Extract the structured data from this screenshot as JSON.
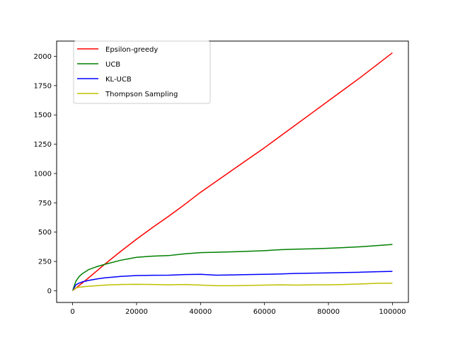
{
  "chart_data": {
    "type": "line",
    "title": "",
    "xlabel": "",
    "ylabel": "",
    "xlim": [
      -5000,
      105000
    ],
    "ylim": [
      -100,
      2130
    ],
    "x_ticks": [
      0,
      20000,
      40000,
      60000,
      80000,
      100000
    ],
    "y_ticks": [
      0,
      250,
      500,
      750,
      1000,
      1250,
      1500,
      1750,
      2000
    ],
    "legend_position": "upper-left",
    "grid": false,
    "series": [
      {
        "name": "Epsilon-greedy",
        "color": "#ff0000",
        "x": [
          0,
          5000,
          10000,
          15000,
          20000,
          25000,
          30000,
          35000,
          40000,
          45000,
          50000,
          55000,
          60000,
          65000,
          70000,
          75000,
          80000,
          85000,
          90000,
          95000,
          100000
        ],
        "y": [
          0,
          110,
          225,
          335,
          440,
          540,
          635,
          735,
          840,
          935,
          1030,
          1125,
          1220,
          1320,
          1420,
          1520,
          1620,
          1720,
          1820,
          1925,
          2030
        ]
      },
      {
        "name": "UCB",
        "color": "#008000",
        "x": [
          0,
          1000,
          2000,
          3000,
          5000,
          7500,
          10000,
          15000,
          20000,
          25000,
          30000,
          35000,
          40000,
          45000,
          50000,
          55000,
          60000,
          65000,
          70000,
          75000,
          80000,
          85000,
          90000,
          95000,
          100000
        ],
        "y": [
          0,
          80,
          120,
          145,
          180,
          205,
          225,
          260,
          285,
          295,
          300,
          315,
          325,
          328,
          332,
          337,
          342,
          350,
          355,
          358,
          362,
          368,
          375,
          385,
          395
        ]
      },
      {
        "name": "KL-UCB",
        "color": "#0000ff",
        "x": [
          0,
          1000,
          2000,
          3000,
          5000,
          7500,
          10000,
          15000,
          20000,
          25000,
          30000,
          35000,
          40000,
          45000,
          50000,
          55000,
          60000,
          65000,
          70000,
          75000,
          80000,
          85000,
          90000,
          95000,
          100000
        ],
        "y": [
          0,
          50,
          65,
          75,
          88,
          100,
          110,
          122,
          130,
          132,
          133,
          138,
          140,
          133,
          135,
          138,
          140,
          143,
          148,
          150,
          152,
          155,
          158,
          162,
          165
        ]
      },
      {
        "name": "Thompson Sampling",
        "color": "#bfbf00",
        "x": [
          0,
          1000,
          2000,
          3000,
          5000,
          7500,
          10000,
          15000,
          20000,
          25000,
          30000,
          35000,
          40000,
          45000,
          50000,
          55000,
          60000,
          65000,
          70000,
          75000,
          80000,
          85000,
          90000,
          95000,
          100000
        ],
        "y": [
          0,
          25,
          30,
          33,
          38,
          43,
          48,
          53,
          55,
          53,
          50,
          53,
          48,
          43,
          43,
          45,
          48,
          50,
          48,
          50,
          50,
          53,
          58,
          63,
          65
        ]
      }
    ]
  }
}
